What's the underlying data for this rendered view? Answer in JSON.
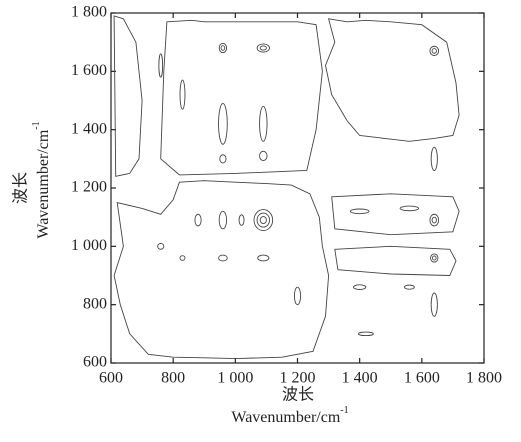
{
  "chart_data": {
    "type": "contour",
    "xlabel": [
      "波长",
      "Wavenumber/cm"
    ],
    "xlabel_sup": "-1",
    "ylabel": [
      "波长",
      "Wavenumber/cm"
    ],
    "ylabel_sup": "-1",
    "xlim": [
      600,
      1800
    ],
    "ylim": [
      600,
      1800
    ],
    "xticks": [
      600,
      800,
      {
        "value": 1000,
        "label": "1 000"
      },
      {
        "value": 1200,
        "label": "1 200"
      },
      {
        "value": 1400,
        "label": "1 400"
      },
      {
        "value": 1600,
        "label": "1 600"
      },
      {
        "value": 1800,
        "label": "1 800"
      }
    ],
    "yticks": [
      600,
      800,
      {
        "value": 1000,
        "label": "1 000"
      },
      {
        "value": 1200,
        "label": "1 200"
      },
      {
        "value": 1400,
        "label": "1 400"
      },
      {
        "value": 1600,
        "label": "1 600"
      },
      {
        "value": 1800,
        "label": "1 800"
      }
    ],
    "color": "#444444",
    "regions": [
      {
        "x": [
          1300,
          1320,
          1290,
          1310,
          1360,
          1400,
          1480,
          1560,
          1640,
          1700,
          1720,
          1710,
          1680,
          1600,
          1500,
          1420,
          1360
        ],
        "y": [
          1780,
          1700,
          1620,
          1520,
          1430,
          1380,
          1370,
          1360,
          1370,
          1380,
          1450,
          1560,
          1700,
          1760,
          1770,
          1775,
          1770
        ]
      },
      {
        "x": [
          620,
          700,
          760,
          800,
          820,
          900,
          1000,
          1100,
          1180,
          1240,
          1270,
          1280,
          1300,
          1290,
          1250,
          1150,
          1000,
          900,
          800,
          720,
          660,
          630,
          610,
          640
        ],
        "y": [
          1150,
          1130,
          1110,
          1160,
          1220,
          1225,
          1220,
          1215,
          1210,
          1180,
          1100,
          1000,
          900,
          760,
          640,
          620,
          615,
          618,
          620,
          630,
          700,
          800,
          900,
          1000
        ]
      },
      {
        "x": [
          610,
          640,
          680,
          700,
          690,
          660,
          615
        ],
        "y": [
          1790,
          1780,
          1700,
          1500,
          1300,
          1250,
          1240
        ]
      },
      {
        "x": [
          780,
          860,
          900,
          1200,
          1260,
          1280,
          1260,
          1230,
          1000,
          820,
          760,
          770
        ],
        "y": [
          1770,
          1775,
          1770,
          1770,
          1760,
          1600,
          1400,
          1260,
          1250,
          1245,
          1300,
          1600
        ]
      },
      {
        "x": [
          1310,
          1500,
          1700,
          1720,
          1700,
          1500,
          1320
        ],
        "y": [
          1170,
          1180,
          1170,
          1120,
          1050,
          1040,
          1060
        ]
      },
      {
        "x": [
          1320,
          1500,
          1690,
          1710,
          1690,
          1500,
          1330
        ],
        "y": [
          990,
          1000,
          990,
          950,
          900,
          905,
          920
        ]
      }
    ],
    "ellipses": [
      [
        1090,
        1090,
        30,
        36
      ],
      [
        1090,
        1090,
        20,
        24
      ],
      [
        1090,
        1090,
        10,
        12
      ],
      [
        1640,
        1670,
        14,
        16
      ],
      [
        1640,
        1670,
        7,
        8
      ],
      [
        1640,
        1090,
        14,
        20
      ],
      [
        1640,
        1090,
        7,
        10
      ],
      [
        1640,
        960,
        12,
        14
      ],
      [
        1640,
        960,
        6,
        7
      ],
      [
        960,
        1680,
        12,
        16
      ],
      [
        960,
        1680,
        6,
        8
      ],
      [
        1090,
        1680,
        20,
        14
      ],
      [
        1090,
        1680,
        10,
        7
      ],
      [
        960,
        1090,
        12,
        30
      ],
      [
        1020,
        1090,
        8,
        18
      ],
      [
        880,
        1090,
        10,
        20
      ],
      [
        960,
        960,
        14,
        10
      ],
      [
        1090,
        960,
        18,
        10
      ],
      [
        830,
        960,
        8,
        8
      ],
      [
        960,
        1420,
        14,
        70
      ],
      [
        1090,
        1420,
        12,
        60
      ],
      [
        830,
        1520,
        8,
        50
      ],
      [
        760,
        1620,
        6,
        40
      ],
      [
        1400,
        1120,
        30,
        8
      ],
      [
        1560,
        1130,
        30,
        8
      ],
      [
        1400,
        860,
        20,
        8
      ],
      [
        1560,
        860,
        16,
        7
      ],
      [
        1420,
        700,
        24,
        6
      ],
      [
        1640,
        1300,
        10,
        40
      ],
      [
        1090,
        1310,
        12,
        16
      ],
      [
        960,
        1300,
        10,
        14
      ],
      [
        1640,
        800,
        10,
        40
      ],
      [
        760,
        1000,
        10,
        10
      ],
      [
        1200,
        830,
        10,
        30
      ]
    ]
  }
}
